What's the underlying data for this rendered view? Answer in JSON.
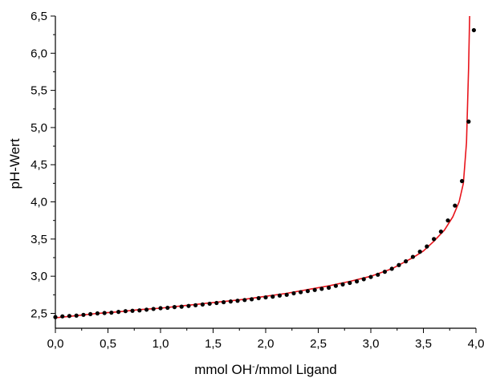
{
  "chart_data": {
    "type": "scatter",
    "title": "",
    "xlabel": "mmol OH",
    "xlabel_superscript": "-",
    "xlabel_suffix": "/mmol Ligand",
    "ylabel": "pH-Wert",
    "xlim": [
      0.0,
      4.0
    ],
    "ylim": [
      2.3,
      6.5
    ],
    "x_ticks": [
      "0,0",
      "0,5",
      "1,0",
      "1,5",
      "2,0",
      "2,5",
      "3,0",
      "3,5",
      "4,0"
    ],
    "x_tick_values": [
      0.0,
      0.5,
      1.0,
      1.5,
      2.0,
      2.5,
      3.0,
      3.5,
      4.0
    ],
    "y_ticks": [
      "2,5",
      "3,0",
      "3,5",
      "4,0",
      "4,5",
      "5,0",
      "5,5",
      "6,0",
      "6,5"
    ],
    "y_tick_values": [
      2.5,
      3.0,
      3.5,
      4.0,
      4.5,
      5.0,
      5.5,
      6.0,
      6.5
    ],
    "grid": false,
    "legend": "none",
    "series": [
      {
        "kind": "points",
        "color": "#000000",
        "x": [
          0.0,
          0.067,
          0.133,
          0.2,
          0.267,
          0.333,
          0.4,
          0.467,
          0.533,
          0.6,
          0.667,
          0.733,
          0.8,
          0.867,
          0.933,
          1.0,
          1.067,
          1.133,
          1.2,
          1.267,
          1.333,
          1.4,
          1.467,
          1.533,
          1.6,
          1.667,
          1.733,
          1.8,
          1.867,
          1.933,
          2.0,
          2.067,
          2.133,
          2.2,
          2.267,
          2.333,
          2.4,
          2.467,
          2.533,
          2.6,
          2.667,
          2.733,
          2.8,
          2.867,
          2.933,
          3.0,
          3.067,
          3.133,
          3.2,
          3.267,
          3.333,
          3.4,
          3.467,
          3.533,
          3.6,
          3.667,
          3.733,
          3.8,
          3.867,
          3.93,
          3.98
        ],
        "y": [
          2.45,
          2.46,
          2.465,
          2.47,
          2.48,
          2.49,
          2.5,
          2.505,
          2.51,
          2.52,
          2.53,
          2.535,
          2.54,
          2.55,
          2.56,
          2.57,
          2.575,
          2.585,
          2.59,
          2.6,
          2.61,
          2.62,
          2.63,
          2.64,
          2.65,
          2.66,
          2.67,
          2.68,
          2.69,
          2.705,
          2.715,
          2.725,
          2.74,
          2.75,
          2.77,
          2.785,
          2.8,
          2.815,
          2.83,
          2.845,
          2.87,
          2.89,
          2.91,
          2.93,
          2.96,
          2.99,
          3.02,
          3.06,
          3.1,
          3.15,
          3.2,
          3.26,
          3.33,
          3.4,
          3.5,
          3.6,
          3.75,
          3.95,
          4.28,
          5.08,
          6.31
        ]
      },
      {
        "kind": "fit-line",
        "color": "#e8141b",
        "x": [
          0.0,
          0.2,
          0.4,
          0.6,
          0.8,
          1.0,
          1.2,
          1.4,
          1.6,
          1.8,
          2.0,
          2.2,
          2.4,
          2.6,
          2.8,
          3.0,
          3.2,
          3.4,
          3.5,
          3.6,
          3.7,
          3.78,
          3.84,
          3.88,
          3.91,
          3.93,
          3.94
        ],
        "y": [
          2.44,
          2.47,
          2.5,
          2.52,
          2.55,
          2.57,
          2.6,
          2.63,
          2.66,
          2.69,
          2.73,
          2.77,
          2.82,
          2.87,
          2.93,
          3.0,
          3.1,
          3.25,
          3.34,
          3.47,
          3.62,
          3.8,
          4.0,
          4.25,
          4.8,
          5.8,
          6.5
        ]
      }
    ]
  }
}
